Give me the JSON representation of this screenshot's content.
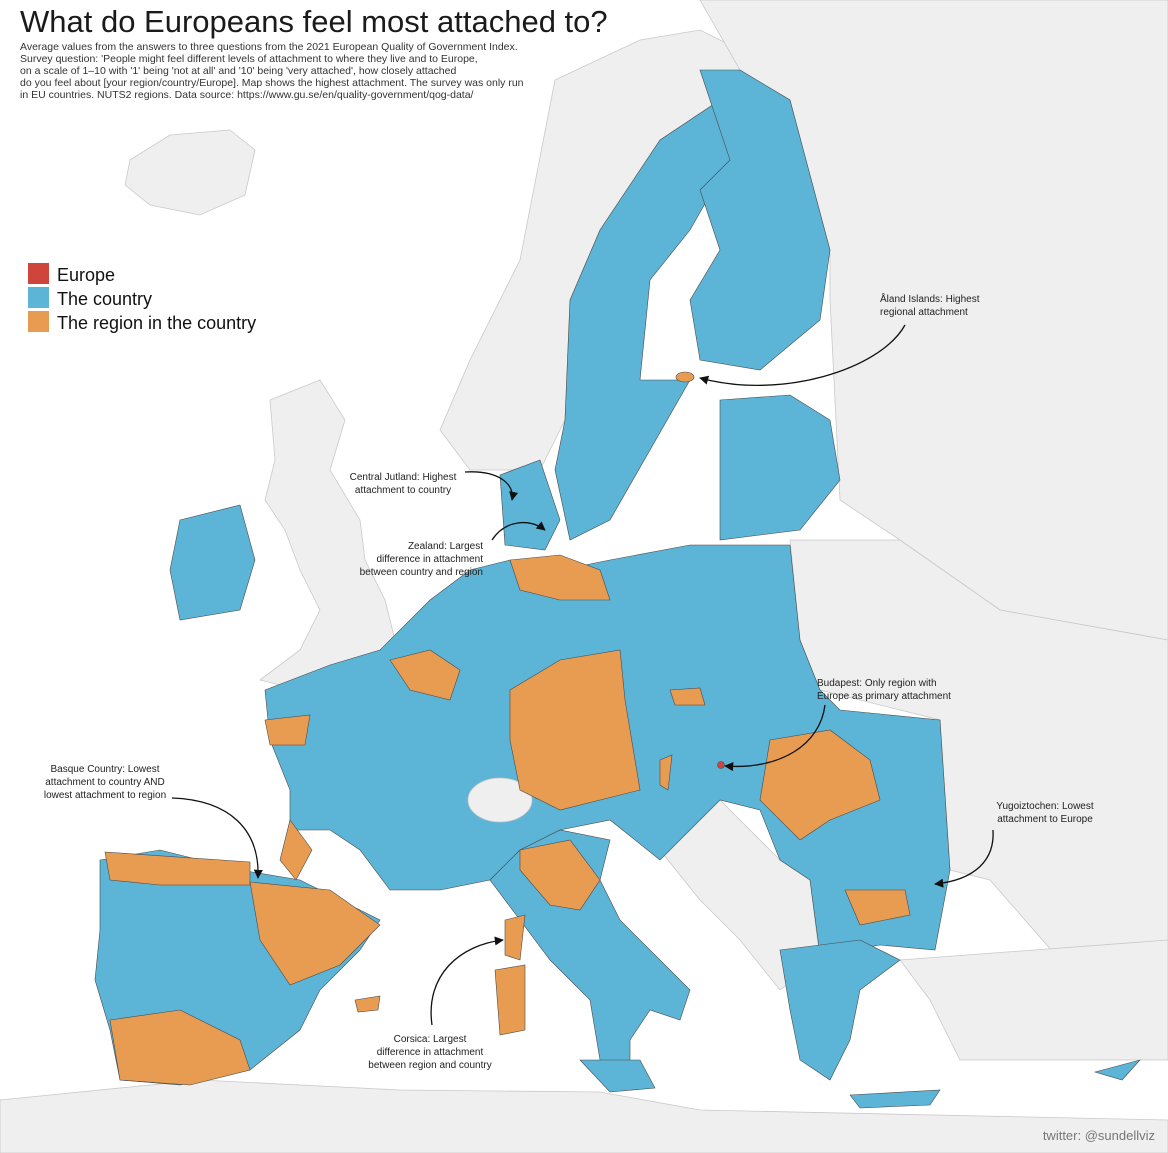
{
  "title": "What do Europeans feel most attached to?",
  "subtitle": [
    "Average values from the answers to three questions from the 2021 European Quality of Government Index.",
    "Survey question: 'People might feel different levels of attachment to where they live and to Europe,",
    "on a scale of 1–10 with '1' being 'not at all' and '10' being 'very attached', how closely attached",
    "do you feel about [your region/country/Europe]. Map shows the highest attachment. The survey was only run",
    "in EU countries. NUTS2 regions. Data source: https://www.gu.se/en/quality-government/qog-data/"
  ],
  "legend": [
    {
      "label": "Europe",
      "color": "#d0453b"
    },
    {
      "label": "The country",
      "color": "#5cb4d6"
    },
    {
      "label": "The region in the country",
      "color": "#e89c52"
    }
  ],
  "annotations": [
    {
      "lines": [
        "Åland Islands: Highest",
        "regional attachment"
      ]
    },
    {
      "lines": [
        "Central Jutland: Highest",
        "attachment to country"
      ]
    },
    {
      "lines": [
        "Zealand: Largest",
        "difference in attachment",
        "between country and region"
      ]
    },
    {
      "lines": [
        "Budapest: Only region with",
        "Europe as primary attachment"
      ]
    },
    {
      "lines": [
        "Basque Country: Lowest",
        "attachment to country AND",
        "lowest attachment to region"
      ]
    },
    {
      "lines": [
        "Yugoiztochen: Lowest",
        "attachment to Europe"
      ]
    },
    {
      "lines": [
        "Corsica: Largest",
        "difference in attachment",
        "between region and country"
      ]
    }
  ],
  "credit": "twitter: @sundellviz"
}
